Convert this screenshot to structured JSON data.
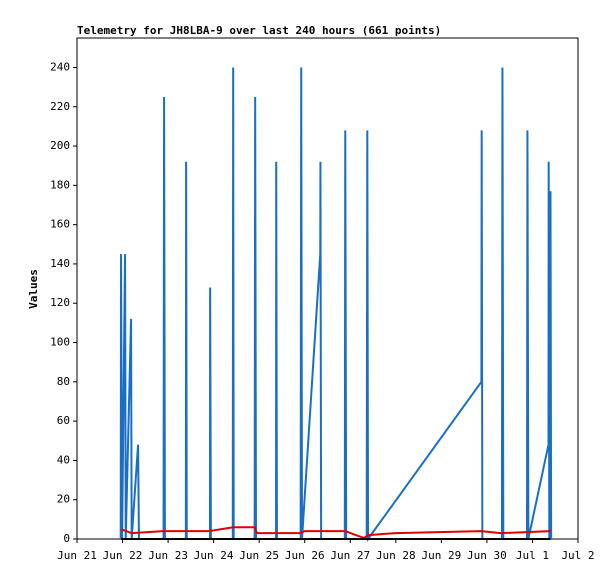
{
  "chart_data": {
    "type": "line",
    "title": "Telemetry for JH8LBA-9 over last 240 hours (661 points)",
    "y_label": "Values",
    "xlim": [
      0,
      11
    ],
    "xticks": [
      {
        "value": 0,
        "label": "Jun 21"
      },
      {
        "value": 1,
        "label": "Jun 22"
      },
      {
        "value": 2,
        "label": "Jun 23"
      },
      {
        "value": 3,
        "label": "Jun 24"
      },
      {
        "value": 4,
        "label": "Jun 25"
      },
      {
        "value": 5,
        "label": "Jun 26"
      },
      {
        "value": 6,
        "label": "Jun 27"
      },
      {
        "value": 7,
        "label": "Jun 28"
      },
      {
        "value": 8,
        "label": "Jun 29"
      },
      {
        "value": 9,
        "label": "Jun 30"
      },
      {
        "value": 10,
        "label": "Jul 1"
      },
      {
        "value": 11,
        "label": "Jul 2"
      }
    ],
    "ylim": [
      0,
      255
    ],
    "yticks": [
      0,
      20,
      40,
      60,
      80,
      100,
      120,
      140,
      160,
      180,
      200,
      220,
      240
    ],
    "series": [
      {
        "color": "#1a6fc4",
        "x": [
          0.96,
          0.967,
          0.99,
          1.055,
          1.07,
          1.187,
          1.2,
          1.341,
          1.36,
          1.9,
          1.912,
          1.93,
          2.39,
          2.396,
          2.41,
          2.92,
          2.923,
          2.94,
          3.42,
          3.429,
          3.44,
          3.9,
          3.912,
          3.93,
          4.37,
          4.374,
          4.39,
          4.91,
          4.923,
          4.94,
          5.341,
          5.345,
          5.36,
          5.88,
          5.89,
          5.91,
          6.36,
          6.374,
          6.39,
          8.879,
          8.885,
          8.9,
          9.33,
          9.341,
          9.36,
          9.88,
          9.89,
          9.91,
          10.352,
          10.356,
          10.37,
          10.396,
          10.41
        ],
        "values": [
          0,
          145,
          0,
          145,
          0,
          112,
          0,
          48,
          0,
          0,
          225,
          0,
          0,
          192,
          0,
          0,
          128,
          0,
          0,
          240,
          0,
          0,
          225,
          0,
          0,
          192,
          0,
          0,
          240,
          0,
          145,
          192,
          0,
          0,
          208,
          0,
          0,
          208,
          0,
          80,
          208,
          0,
          0,
          240,
          0,
          0,
          208,
          0,
          48,
          192,
          0,
          177,
          0
        ]
      },
      {
        "color": "#e00000",
        "x": [
          0.967,
          1.2,
          1.9,
          2.9,
          3.43,
          3.9,
          3.95,
          4.9,
          5.0,
          5.89,
          6.3,
          6.4,
          7.0,
          8.88,
          9.3,
          10.4
        ],
        "values": [
          5,
          3,
          4,
          4,
          6,
          6,
          3,
          3,
          4,
          4,
          0.5,
          2,
          3,
          4,
          3,
          4
        ]
      },
      {
        "color": "#000000",
        "x": [
          0.967,
          10.396
        ],
        "values": [
          0,
          0
        ]
      }
    ]
  }
}
